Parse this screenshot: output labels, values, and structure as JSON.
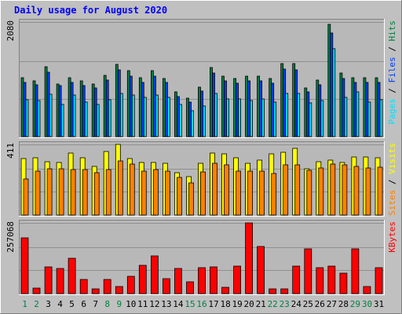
{
  "chart_data": {
    "type": "bar",
    "title": "Daily usage for August 2020",
    "colors": {
      "background": "#c0c0c0",
      "panel": "#b8b8b8",
      "hits": "#008040",
      "files": "#0040ff",
      "pages": "#00e0ff",
      "visits": "#ffff00",
      "sites": "#ff8000",
      "kbytes": "#ff0000",
      "title": "#0000ff",
      "weekday_label": "#000000",
      "weekend_label": "#008040"
    },
    "categories": [
      "1",
      "2",
      "3",
      "4",
      "5",
      "6",
      "7",
      "8",
      "9",
      "10",
      "11",
      "12",
      "13",
      "14",
      "15",
      "16",
      "17",
      "18",
      "19",
      "20",
      "21",
      "22",
      "23",
      "24",
      "25",
      "26",
      "27",
      "28",
      "29",
      "30",
      "31"
    ],
    "weekend_days": [
      "1",
      "2",
      "8",
      "9",
      "15",
      "16",
      "22",
      "23",
      "29",
      "30"
    ],
    "panels": [
      {
        "key": "hits_panel",
        "max_label": "2080",
        "ymax": 2080,
        "legend": [
          {
            "text": "Pages",
            "color": "#00e0ff"
          },
          {
            "text": " / ",
            "color": "#000000"
          },
          {
            "text": "Files",
            "color": "#0040ff"
          },
          {
            "text": " / ",
            "color": "#000000"
          },
          {
            "text": "Hits",
            "color": "#008040"
          }
        ],
        "series": [
          {
            "name": "Hits",
            "color": "#008040",
            "values": [
              1070,
              1010,
              1270,
              950,
              1070,
              1010,
              950,
              1110,
              1310,
              1190,
              1070,
              1190,
              1060,
              810,
              700,
              900,
              1250,
              1090,
              1050,
              1090,
              1090,
              1050,
              1330,
              1330,
              880,
              1030,
              2040,
              1150,
              1070,
              1070,
              1070
            ]
          },
          {
            "name": "Files",
            "color": "#0040ff",
            "values": [
              990,
              940,
              1170,
              930,
              990,
              930,
              880,
              1030,
              1210,
              1100,
              990,
              1100,
              980,
              720,
              620,
              830,
              1150,
              1010,
              970,
              1010,
              1010,
              970,
              1230,
              1210,
              810,
              940,
              1880,
              1060,
              990,
              990,
              990
            ]
          },
          {
            "name": "Pages",
            "color": "#00e0ff",
            "values": [
              670,
              660,
              770,
              580,
              750,
              630,
              590,
              670,
              780,
              760,
              710,
              750,
              710,
              580,
              470,
              550,
              780,
              690,
              680,
              660,
              690,
              620,
              780,
              780,
              610,
              660,
              1590,
              710,
              810,
              630,
              670
            ]
          }
        ]
      },
      {
        "key": "visits_panel",
        "max_label": "411",
        "ymax": 411,
        "legend": [
          {
            "text": "Sites",
            "color": "#ff8000"
          },
          {
            "text": " / ",
            "color": "#000000"
          },
          {
            "text": "Visits",
            "color": "#ffff00"
          }
        ],
        "series": [
          {
            "name": "Visits",
            "color": "#ffff00",
            "values": [
              330,
              335,
              310,
              305,
              360,
              335,
              285,
              370,
              411,
              330,
              305,
              305,
              300,
              245,
              225,
              300,
              360,
              355,
              335,
              300,
              320,
              355,
              365,
              390,
              270,
              310,
              320,
              305,
              340,
              340,
              335
            ]
          },
          {
            "name": "Sites",
            "color": "#ff8000",
            "values": [
              210,
              255,
              270,
              270,
              265,
              265,
              245,
              265,
              315,
              295,
              255,
              265,
              255,
              220,
              185,
              250,
              300,
              290,
              255,
              255,
              255,
              240,
              290,
              290,
              260,
              275,
              295,
              290,
              285,
              275,
              280
            ]
          }
        ]
      },
      {
        "key": "kbytes_panel",
        "max_label": "257068",
        "ymax": 257068,
        "legend": [
          {
            "text": "KBytes",
            "color": "#ff0000"
          }
        ],
        "series": [
          {
            "name": "KBytes",
            "color": "#ff0000",
            "values": [
              203000,
              20000,
              97000,
              92000,
              128000,
              52000,
              18000,
              51000,
              25000,
              63000,
              103000,
              136000,
              54000,
              91000,
              44000,
              95000,
              97000,
              22000,
              101000,
              257068,
              170000,
              18000,
              18000,
              101000,
              164000,
              95000,
              101000,
              75000,
              164000,
              25000,
              95000
            ]
          }
        ]
      }
    ]
  }
}
